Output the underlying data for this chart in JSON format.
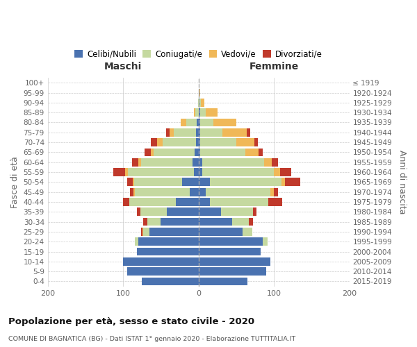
{
  "age_groups": [
    "0-4",
    "5-9",
    "10-14",
    "15-19",
    "20-24",
    "25-29",
    "30-34",
    "35-39",
    "40-44",
    "45-49",
    "50-54",
    "55-59",
    "60-64",
    "65-69",
    "70-74",
    "75-79",
    "80-84",
    "85-89",
    "90-94",
    "95-99",
    "100+"
  ],
  "birth_years": [
    "2015-2019",
    "2010-2014",
    "2005-2009",
    "2000-2004",
    "1995-1999",
    "1990-1994",
    "1985-1989",
    "1980-1984",
    "1975-1979",
    "1970-1974",
    "1965-1969",
    "1960-1964",
    "1955-1959",
    "1950-1954",
    "1945-1949",
    "1940-1944",
    "1935-1939",
    "1930-1934",
    "1925-1929",
    "1920-1924",
    "≤ 1919"
  ],
  "colors": {
    "celibi": "#4a72b0",
    "coniugati": "#c5d9a0",
    "vedovi": "#f0b858",
    "divorziati": "#c0392b"
  },
  "males": {
    "celibi": [
      75,
      95,
      100,
      82,
      80,
      65,
      50,
      42,
      30,
      12,
      22,
      6,
      8,
      5,
      3,
      3,
      2,
      0,
      0,
      0,
      0
    ],
    "coniugati": [
      0,
      0,
      0,
      0,
      4,
      8,
      18,
      35,
      62,
      72,
      63,
      88,
      68,
      55,
      45,
      30,
      14,
      4,
      1,
      0,
      0
    ],
    "vedovi": [
      0,
      0,
      0,
      0,
      0,
      1,
      0,
      0,
      0,
      2,
      2,
      3,
      4,
      3,
      7,
      5,
      8,
      2,
      0,
      0,
      0
    ],
    "divorziati": [
      0,
      0,
      0,
      0,
      0,
      2,
      5,
      5,
      8,
      5,
      8,
      16,
      8,
      9,
      8,
      5,
      0,
      0,
      0,
      0,
      0
    ]
  },
  "females": {
    "celibi": [
      65,
      90,
      95,
      82,
      85,
      58,
      45,
      30,
      15,
      10,
      15,
      5,
      5,
      2,
      2,
      2,
      2,
      2,
      1,
      1,
      0
    ],
    "coniugati": [
      0,
      0,
      0,
      0,
      7,
      13,
      22,
      42,
      78,
      85,
      95,
      95,
      82,
      60,
      48,
      30,
      18,
      8,
      2,
      0,
      0
    ],
    "vedovi": [
      0,
      0,
      0,
      0,
      0,
      0,
      0,
      0,
      0,
      5,
      5,
      8,
      10,
      18,
      24,
      32,
      30,
      15,
      5,
      1,
      0
    ],
    "divorziati": [
      0,
      0,
      0,
      0,
      0,
      0,
      5,
      5,
      18,
      5,
      20,
      15,
      8,
      5,
      5,
      5,
      0,
      0,
      0,
      0,
      0
    ]
  },
  "title": "Popolazione per età, sesso e stato civile - 2020",
  "subtitle": "COMUNE DI BAGNATICA (BG) - Dati ISTAT 1° gennaio 2020 - Elaborazione TUTTITALIA.IT",
  "label_maschi": "Maschi",
  "label_femmine": "Femmine",
  "ylabel_left": "Fasce di età",
  "ylabel_right": "Anni di nascita",
  "xlim": 200,
  "legend_labels": [
    "Celibi/Nubili",
    "Coniugati/e",
    "Vedovi/e",
    "Divorziati/e"
  ],
  "bg_color": "#ffffff",
  "grid_color": "#cccccc"
}
